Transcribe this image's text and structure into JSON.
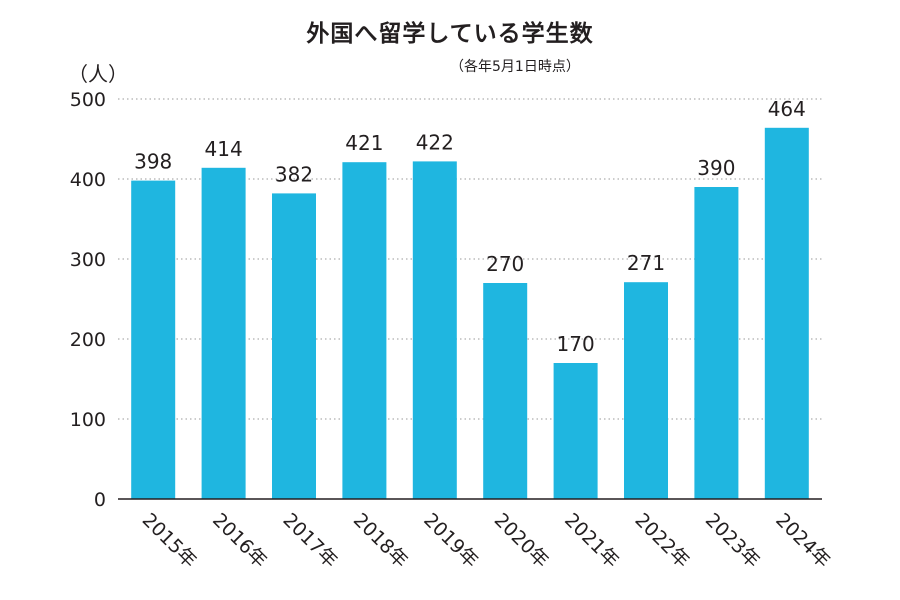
{
  "chart_data": {
    "type": "bar",
    "title": "外国へ留学している学生数",
    "subtitle": "（各年5月1日時点）",
    "ylabel": "（人）",
    "xlabel": "",
    "categories": [
      "2015年",
      "2016年",
      "2017年",
      "2018年",
      "2019年",
      "2020年",
      "2021年",
      "2022年",
      "2023年",
      "2024年"
    ],
    "values": [
      398,
      414,
      382,
      421,
      422,
      270,
      170,
      271,
      390,
      464
    ],
    "data_labels": [
      "398",
      "414",
      "382",
      "421",
      "422",
      "270",
      "170",
      "271",
      "390",
      "464"
    ],
    "ylim": [
      0,
      500
    ],
    "yticks": [
      0,
      100,
      200,
      300,
      400,
      500
    ],
    "ytick_labels": [
      "0",
      "100",
      "200",
      "300",
      "400",
      "500"
    ],
    "grid": true,
    "legend": "none",
    "bar_color": "#1fb6e0",
    "text_color": "#231f20"
  }
}
